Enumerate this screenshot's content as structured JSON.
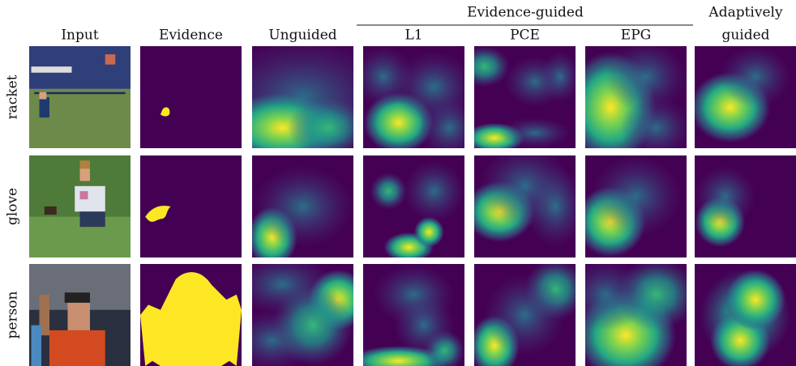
{
  "header": {
    "group_title": "Evidence-guided",
    "columns": [
      "Input",
      "Evidence",
      "Unguided",
      "L1",
      "PCE",
      "EPG"
    ],
    "last_column": [
      "Adaptively",
      "guided"
    ]
  },
  "rows": [
    "racket",
    "glove",
    "person"
  ]
}
